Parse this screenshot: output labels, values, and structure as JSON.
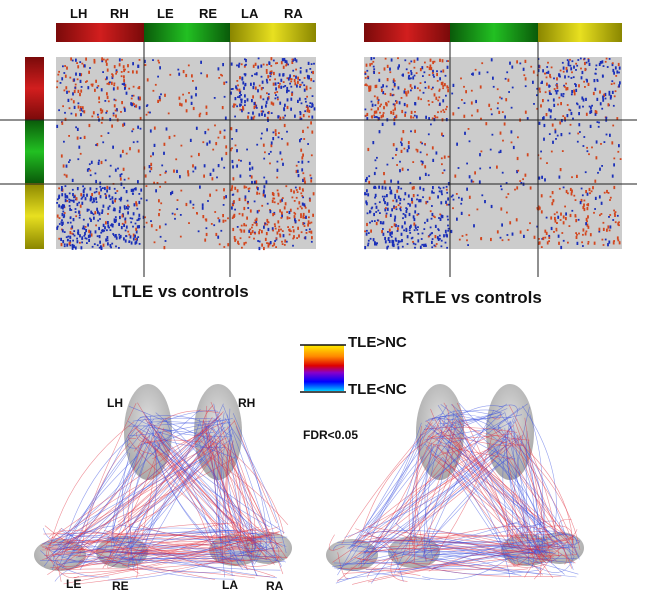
{
  "regions": [
    {
      "label": "LH",
      "color": "#b01414"
    },
    {
      "label": "RH",
      "color": "#b01414"
    },
    {
      "label": "LE",
      "color": "#139a13"
    },
    {
      "label": "RE",
      "color": "#139a13"
    },
    {
      "label": "LA",
      "color": "#c8c20c"
    },
    {
      "label": "RA",
      "color": "#c8c20c"
    }
  ],
  "matrices": [
    {
      "caption": "LTLE vs controls"
    },
    {
      "caption": "RTLE vs controls"
    }
  ],
  "legend": {
    "top_label": "TLE>NC",
    "bottom_label": "TLE<NC",
    "fdr": "FDR<0.05",
    "colors": [
      "#ffee00",
      "#ff8800",
      "#dd0000",
      "#8800cc",
      "#0000ff",
      "#00ccff"
    ]
  },
  "brain_labels": {
    "lh": "LH",
    "rh": "RH",
    "le": "LE",
    "re": "RE",
    "la": "LA",
    "ra": "RA"
  },
  "colors": {
    "matrix_bg": "#cccccc",
    "increase": "#d2461e",
    "decrease": "#1a2fb8",
    "brain": "#a9a9a9",
    "fiber_red": "#e03040",
    "fiber_blue": "#3b50e0"
  }
}
